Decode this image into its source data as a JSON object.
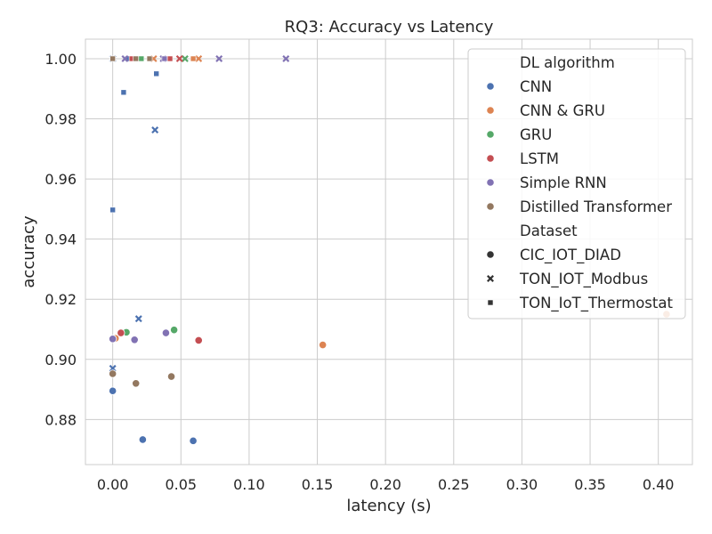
{
  "chart_data": {
    "type": "scatter",
    "title": "RQ3: Accuracy vs Latency",
    "xlabel": "latency (s)",
    "ylabel": "accuracy",
    "xlim": [
      -0.02,
      0.425
    ],
    "ylim": [
      0.865,
      1.0065
    ],
    "xticks": [
      0.0,
      0.05,
      0.1,
      0.15,
      0.2,
      0.25,
      0.3,
      0.35,
      0.4
    ],
    "xtick_labels": [
      "0.00",
      "0.05",
      "0.10",
      "0.15",
      "0.20",
      "0.25",
      "0.30",
      "0.35",
      "0.40"
    ],
    "yticks": [
      0.88,
      0.9,
      0.92,
      0.94,
      0.96,
      0.98,
      1.0
    ],
    "ytick_labels": [
      "0.88",
      "0.90",
      "0.92",
      "0.94",
      "0.96",
      "0.98",
      "1.00"
    ],
    "grid": true,
    "legend_position": "top-right",
    "hue_title": "DL algorithm",
    "style_title": "Dataset",
    "hue_series": [
      {
        "name": "CNN",
        "color": "#4c72b0"
      },
      {
        "name": "CNN & GRU",
        "color": "#dd8452"
      },
      {
        "name": "GRU",
        "color": "#55a868"
      },
      {
        "name": "LSTM",
        "color": "#c44e52"
      },
      {
        "name": "Simple RNN",
        "color": "#8172b3"
      },
      {
        "name": "Distilled Transformer",
        "color": "#937860"
      }
    ],
    "style_series": [
      {
        "name": "CIC_IOT_DIAD",
        "marker": "circle"
      },
      {
        "name": "TON_IOT_Modbus",
        "marker": "x"
      },
      {
        "name": "TON_IoT_Thermostat",
        "marker": "square"
      }
    ],
    "points": [
      {
        "x": 0.0,
        "y": 0.8895,
        "hue": "CNN",
        "style": "CIC_IOT_DIAD"
      },
      {
        "x": 0.022,
        "y": 0.8733,
        "hue": "CNN",
        "style": "CIC_IOT_DIAD"
      },
      {
        "x": 0.059,
        "y": 0.8729,
        "hue": "CNN",
        "style": "CIC_IOT_DIAD"
      },
      {
        "x": 0.0,
        "y": 0.897,
        "hue": "CNN",
        "style": "TON_IOT_Modbus"
      },
      {
        "x": 0.019,
        "y": 0.9135,
        "hue": "CNN",
        "style": "TON_IOT_Modbus"
      },
      {
        "x": 0.031,
        "y": 0.9763,
        "hue": "CNN",
        "style": "TON_IOT_Modbus"
      },
      {
        "x": 0.0,
        "y": 1.0,
        "hue": "CNN",
        "style": "TON_IOT_Modbus"
      },
      {
        "x": 0.0,
        "y": 0.9497,
        "hue": "CNN",
        "style": "TON_IoT_Thermostat"
      },
      {
        "x": 0.008,
        "y": 0.9888,
        "hue": "CNN",
        "style": "TON_IoT_Thermostat"
      },
      {
        "x": 0.032,
        "y": 0.995,
        "hue": "CNN",
        "style": "TON_IoT_Thermostat"
      },
      {
        "x": 0.0,
        "y": 1.0,
        "hue": "CNN",
        "style": "TON_IoT_Thermostat"
      },
      {
        "x": 0.011,
        "y": 1.0,
        "hue": "CNN",
        "style": "TON_IoT_Thermostat"
      },
      {
        "x": 0.154,
        "y": 0.9048,
        "hue": "CNN & GRU",
        "style": "CIC_IOT_DIAD"
      },
      {
        "x": 0.406,
        "y": 0.915,
        "hue": "CNN & GRU",
        "style": "CIC_IOT_DIAD"
      },
      {
        "x": 0.002,
        "y": 0.907,
        "hue": "CNN & GRU",
        "style": "CIC_IOT_DIAD"
      },
      {
        "x": 0.063,
        "y": 1.0,
        "hue": "CNN & GRU",
        "style": "TON_IOT_Modbus"
      },
      {
        "x": 0.03,
        "y": 1.0,
        "hue": "CNN & GRU",
        "style": "TON_IOT_Modbus"
      },
      {
        "x": 0.059,
        "y": 1.0,
        "hue": "CNN & GRU",
        "style": "TON_IoT_Thermostat"
      },
      {
        "x": 0.01,
        "y": 0.909,
        "hue": "GRU",
        "style": "CIC_IOT_DIAD"
      },
      {
        "x": 0.045,
        "y": 0.9098,
        "hue": "GRU",
        "style": "CIC_IOT_DIAD"
      },
      {
        "x": 0.053,
        "y": 1.0,
        "hue": "GRU",
        "style": "TON_IOT_Modbus"
      },
      {
        "x": 0.021,
        "y": 1.0,
        "hue": "GRU",
        "style": "TON_IoT_Thermostat"
      },
      {
        "x": 0.006,
        "y": 0.9088,
        "hue": "LSTM",
        "style": "CIC_IOT_DIAD"
      },
      {
        "x": 0.063,
        "y": 0.9063,
        "hue": "LSTM",
        "style": "CIC_IOT_DIAD"
      },
      {
        "x": 0.049,
        "y": 1.0,
        "hue": "LSTM",
        "style": "TON_IOT_Modbus"
      },
      {
        "x": 0.042,
        "y": 1.0,
        "hue": "LSTM",
        "style": "TON_IoT_Thermostat"
      },
      {
        "x": 0.014,
        "y": 1.0,
        "hue": "LSTM",
        "style": "TON_IoT_Thermostat"
      },
      {
        "x": 0.0,
        "y": 0.9068,
        "hue": "Simple RNN",
        "style": "CIC_IOT_DIAD"
      },
      {
        "x": 0.016,
        "y": 0.9065,
        "hue": "Simple RNN",
        "style": "CIC_IOT_DIAD"
      },
      {
        "x": 0.039,
        "y": 0.9088,
        "hue": "Simple RNN",
        "style": "CIC_IOT_DIAD"
      },
      {
        "x": 0.078,
        "y": 1.0,
        "hue": "Simple RNN",
        "style": "TON_IOT_Modbus"
      },
      {
        "x": 0.127,
        "y": 1.0,
        "hue": "Simple RNN",
        "style": "TON_IOT_Modbus"
      },
      {
        "x": 0.037,
        "y": 1.0,
        "hue": "Simple RNN",
        "style": "TON_IOT_Modbus"
      },
      {
        "x": 0.009,
        "y": 1.0,
        "hue": "Simple RNN",
        "style": "TON_IOT_Modbus"
      },
      {
        "x": 0.038,
        "y": 1.0,
        "hue": "Simple RNN",
        "style": "TON_IoT_Thermostat"
      },
      {
        "x": 0.0,
        "y": 0.8952,
        "hue": "Distilled Transformer",
        "style": "CIC_IOT_DIAD"
      },
      {
        "x": 0.017,
        "y": 0.892,
        "hue": "Distilled Transformer",
        "style": "CIC_IOT_DIAD"
      },
      {
        "x": 0.043,
        "y": 0.8943,
        "hue": "Distilled Transformer",
        "style": "CIC_IOT_DIAD"
      },
      {
        "x": 0.0,
        "y": 1.0,
        "hue": "Distilled Transformer",
        "style": "TON_IoT_Thermostat"
      },
      {
        "x": 0.027,
        "y": 1.0,
        "hue": "Distilled Transformer",
        "style": "TON_IoT_Thermostat"
      },
      {
        "x": 0.017,
        "y": 1.0,
        "hue": "Distilled Transformer",
        "style": "TON_IoT_Thermostat"
      }
    ]
  }
}
